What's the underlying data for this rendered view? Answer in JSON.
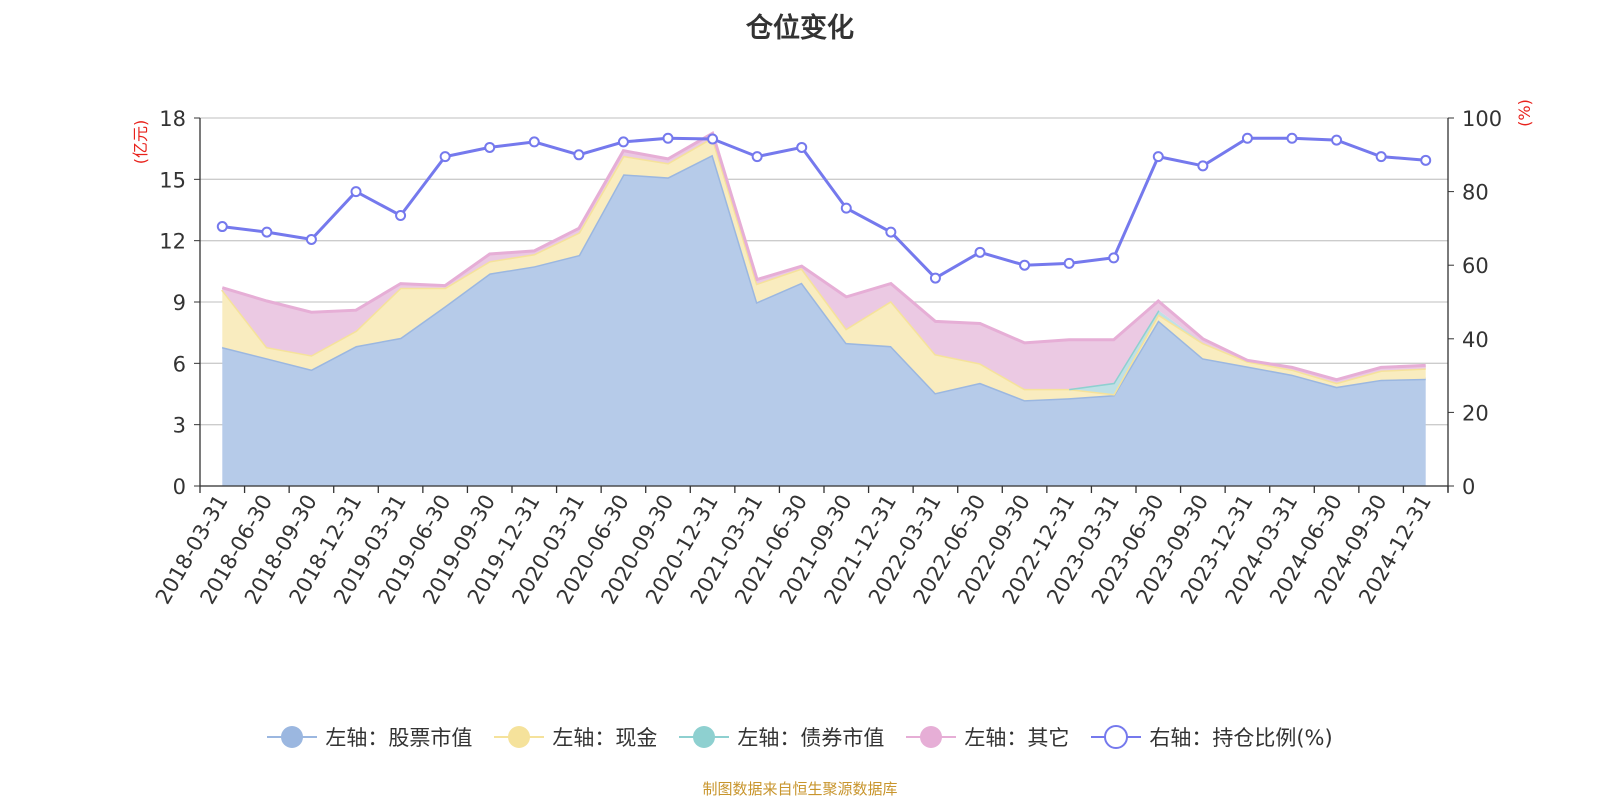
{
  "chart_data": {
    "type": "area",
    "title": "仓位变化",
    "left_axis_unit": "(亿元)",
    "right_axis_unit": "(%)",
    "ylim_left": [
      0,
      18
    ],
    "ylim_right": [
      0,
      100
    ],
    "left_ticks": [
      "0",
      "3",
      "6",
      "9",
      "12",
      "15",
      "18"
    ],
    "right_ticks": [
      "0",
      "20",
      "40",
      "60",
      "80",
      "100"
    ],
    "grid": true,
    "stacked": true,
    "legend_position": "bottom",
    "categories": [
      "2018-03-31",
      "2018-06-30",
      "2018-09-30",
      "2018-12-31",
      "2019-03-31",
      "2019-06-30",
      "2019-09-30",
      "2019-12-31",
      "2020-03-31",
      "2020-06-30",
      "2020-09-30",
      "2020-12-31",
      "2021-03-31",
      "2021-06-30",
      "2021-09-30",
      "2021-12-31",
      "2022-03-31",
      "2022-06-30",
      "2022-09-30",
      "2022-12-31",
      "2023-03-31",
      "2023-06-30",
      "2023-09-30",
      "2023-12-31",
      "2024-03-31",
      "2024-06-30",
      "2024-09-30",
      "2024-12-31"
    ],
    "series": [
      {
        "name": "左轴：股票市值",
        "axis": "left",
        "color": "#9bb7e0",
        "fill": "#b6cbe9",
        "values": [
          6.8,
          6.25,
          5.7,
          6.85,
          7.25,
          8.8,
          10.4,
          10.75,
          11.3,
          15.25,
          15.1,
          16.2,
          9.0,
          9.95,
          7.0,
          6.85,
          4.55,
          5.05,
          4.2,
          4.3,
          4.45,
          8.1,
          6.25,
          5.85,
          5.45,
          4.85,
          5.2,
          5.25
        ]
      },
      {
        "name": "左轴：现金",
        "axis": "left",
        "color": "#f5e29b",
        "fill": "#f9ecbf",
        "values": [
          2.8,
          0.55,
          0.7,
          0.75,
          2.45,
          0.9,
          0.6,
          0.6,
          1.1,
          0.9,
          0.7,
          0.85,
          0.9,
          0.7,
          0.7,
          2.2,
          1.9,
          0.95,
          0.55,
          0.45,
          0.05,
          0.3,
          0.75,
          0.25,
          0.25,
          0.2,
          0.45,
          0.5
        ]
      },
      {
        "name": "左轴：债券市值",
        "axis": "left",
        "color": "#8ed0d0",
        "fill": "#bfe0e6",
        "values": [
          0,
          0,
          0,
          0,
          0,
          0,
          0,
          0,
          0,
          0,
          0,
          0,
          0,
          0,
          0,
          0,
          0,
          0,
          0,
          0,
          0.55,
          0.2,
          0,
          0,
          0,
          0,
          0,
          0
        ]
      },
      {
        "name": "左轴：其它",
        "axis": "left",
        "color": "#e6aed6",
        "fill": "#ebc9e3",
        "values": [
          0.1,
          2.25,
          2.1,
          1.0,
          0.2,
          0.1,
          0.35,
          0.15,
          0.2,
          0.25,
          0.2,
          0.2,
          0.2,
          0.1,
          1.55,
          0.85,
          1.6,
          1.95,
          2.25,
          2.4,
          2.1,
          0.45,
          0.2,
          0.05,
          0.1,
          0.15,
          0.15,
          0.15
        ]
      },
      {
        "name": "右轴：持仓比例(%)",
        "axis": "right",
        "color": "#7579ed",
        "values": [
          70.5,
          69,
          67,
          80,
          73.5,
          89.5,
          92,
          93.5,
          90,
          93.5,
          94.5,
          94.3,
          89.5,
          92,
          75.5,
          69,
          56.5,
          63.5,
          60,
          60.5,
          62,
          89.5,
          87,
          94.5,
          94.5,
          94,
          89.5,
          88.5
        ]
      }
    ]
  },
  "source_note": "制图数据来自恒生聚源数据库"
}
